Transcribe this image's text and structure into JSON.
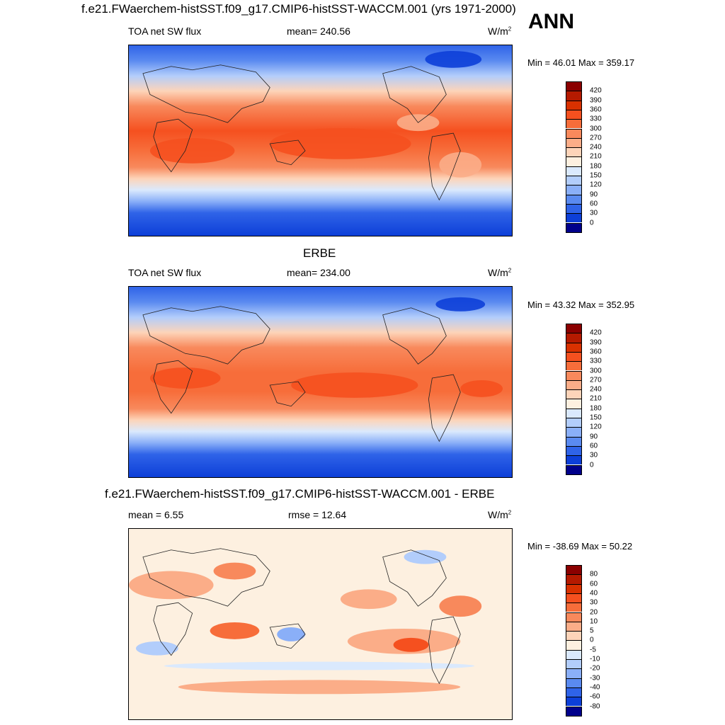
{
  "title": "f.e21.FWaerchem-histSST.f09_g17.CMIP6-histSST-WACCM.001 (yrs 1971-2000)",
  "season": "ANN",
  "panels": [
    {
      "center_title": "",
      "left_label": "TOA net SW flux",
      "center_label": "mean= 240.56",
      "units": "W/m",
      "units_sup": "2",
      "minmax": "Min =  46.01 Max = 359.17",
      "type": "field"
    },
    {
      "center_title": "ERBE",
      "left_label": "TOA net SW flux",
      "center_label": "mean= 234.00",
      "units": "W/m",
      "units_sup": "2",
      "minmax": "Min =  43.32 Max = 352.95",
      "type": "field"
    },
    {
      "center_title": "f.e21.FWaerchem-histSST.f09_g17.CMIP6-histSST-WACCM.001 - ERBE",
      "left_label": "mean =   6.55",
      "center_label": "rmse =  12.64",
      "units": "W/m",
      "units_sup": "2",
      "minmax": "Min = -38.69 Max =  50.22",
      "type": "diff"
    }
  ],
  "colorbars": {
    "field": {
      "labels": [
        "420",
        "390",
        "360",
        "330",
        "300",
        "270",
        "240",
        "210",
        "180",
        "150",
        "120",
        "90",
        "60",
        "30",
        "0"
      ],
      "colors": [
        "#8b0000",
        "#b51a00",
        "#d93100",
        "#f5501f",
        "#f76d3a",
        "#f8895c",
        "#fbad88",
        "#fdd4b9",
        "#fdf0e0",
        "#dae9fd",
        "#b2cdfb",
        "#8aaff8",
        "#5a8af0",
        "#2f63e8",
        "#0d3fd8",
        "#00008b"
      ]
    },
    "diff": {
      "labels": [
        "80",
        "60",
        "40",
        "30",
        "20",
        "10",
        "5",
        "0",
        "-5",
        "-10",
        "-20",
        "-30",
        "-40",
        "-60",
        "-80"
      ],
      "colors": [
        "#8b0000",
        "#b51a00",
        "#d93100",
        "#f5501f",
        "#f76d3a",
        "#f8895c",
        "#fbad88",
        "#fdd4b9",
        "#fdf0e0",
        "#dae9fd",
        "#b2cdfb",
        "#8aaff8",
        "#5a8af0",
        "#2f63e8",
        "#0d3fd8",
        "#00008b"
      ]
    }
  }
}
